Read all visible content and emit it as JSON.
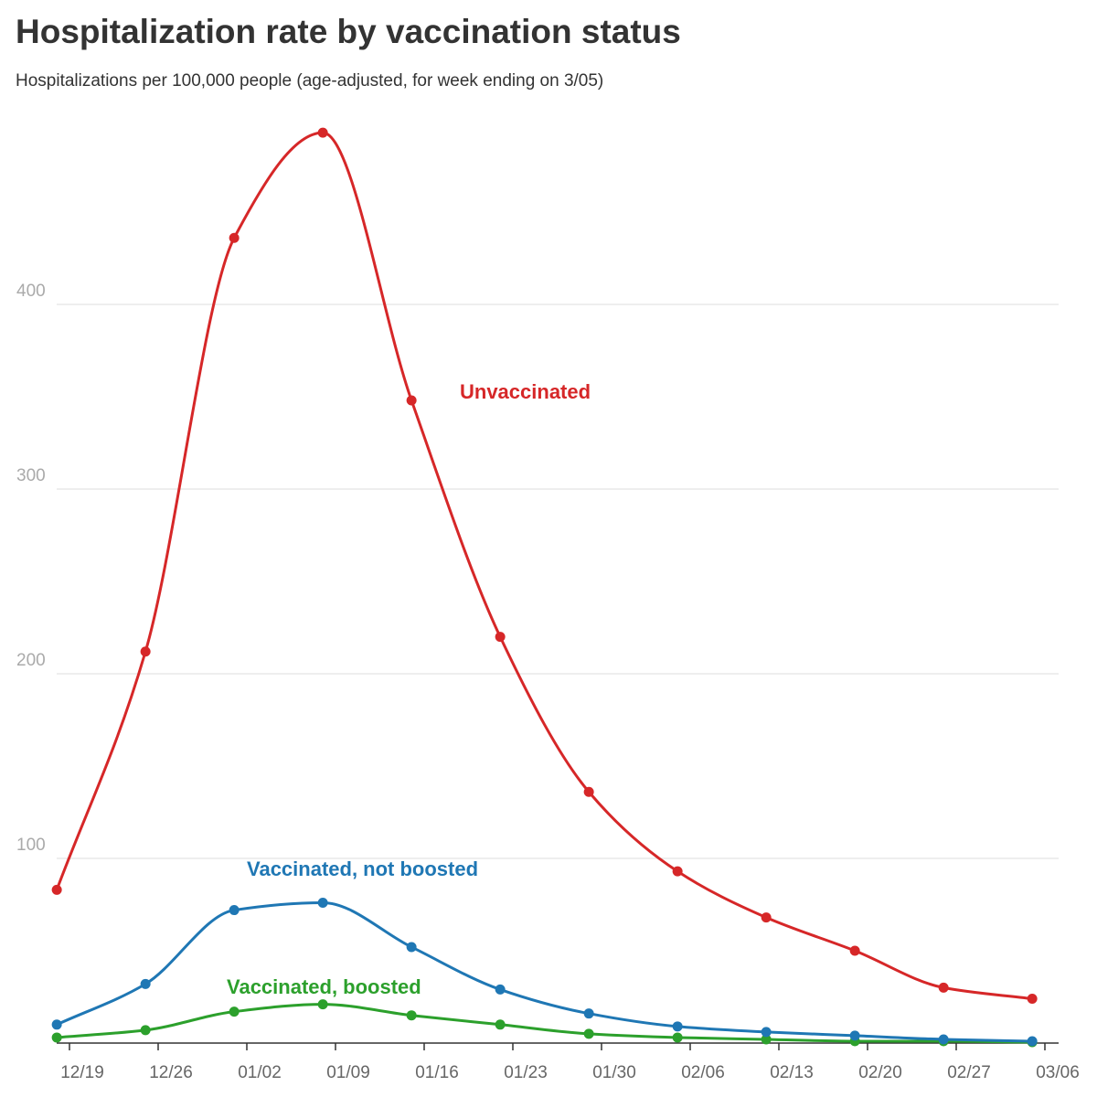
{
  "chart_data": {
    "type": "line",
    "title": "Hospitalization rate by vaccination status",
    "subtitle": "Hospitalizations per 100,000 people (age-adjusted, for week ending on 3/05)",
    "xlabel": "",
    "ylabel": "",
    "x_ticks": [
      "12/19",
      "12/26",
      "01/02",
      "01/09",
      "01/16",
      "01/23",
      "01/30",
      "02/06",
      "02/13",
      "02/20",
      "02/27",
      "03/06"
    ],
    "x_points": [
      "12/18",
      "12/25",
      "01/01",
      "01/08",
      "01/15",
      "01/22",
      "01/29",
      "02/05",
      "02/12",
      "02/19",
      "02/26",
      "03/05"
    ],
    "y_ticks": [
      100,
      200,
      300,
      400
    ],
    "ylim": [
      0,
      500
    ],
    "grid": true,
    "series": [
      {
        "name": "Unvaccinated",
        "color": "#d62728",
        "values": [
          83,
          212,
          436,
          493,
          348,
          220,
          136,
          93,
          68,
          50,
          30,
          24
        ]
      },
      {
        "name": "Vaccinated, not boosted",
        "color": "#1f77b4",
        "values": [
          10,
          32,
          72,
          76,
          52,
          29,
          16,
          9,
          6,
          4,
          2,
          1
        ]
      },
      {
        "name": "Vaccinated, boosted",
        "color": "#2ca02c",
        "values": [
          3,
          7,
          17,
          21,
          15,
          10,
          5,
          3,
          2,
          1,
          1,
          0.5
        ]
      }
    ],
    "colors": {
      "grid": "#e3e3e3",
      "axis": "#333333",
      "tick_text": "#666666",
      "y_tick_text": "#aaaaaa"
    }
  }
}
